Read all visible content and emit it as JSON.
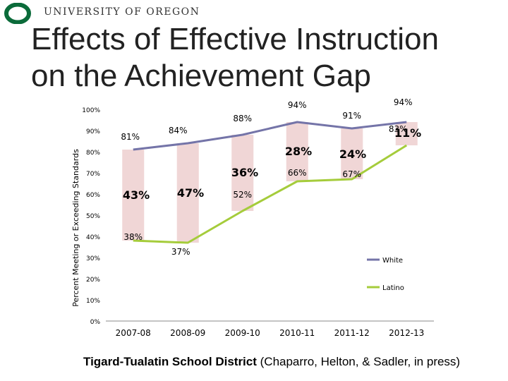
{
  "header": {
    "university": "UNIVERSITY OF OREGON",
    "logo_icon": "o-logo-icon",
    "brand_color": "#0b6b3a"
  },
  "slide": {
    "title_line1": "Effects of Effective Instruction",
    "title_line2": "on the Achievement Gap"
  },
  "footer": {
    "district": "Tigard-Tualatin School District",
    "citation": " (Chaparro, Helton, & Sadler, in press)"
  },
  "chart_data": {
    "type": "line",
    "ylabel": "Percent Meeting or Exceeding Standards",
    "xlabel": "",
    "categories": [
      "2007-08",
      "2008-09",
      "2009-10",
      "2010-11",
      "2011-12",
      "2012-13"
    ],
    "ylim": [
      0,
      100
    ],
    "yticks": [
      "0%",
      "10%",
      "20%",
      "30%",
      "40%",
      "50%",
      "60%",
      "70%",
      "80%",
      "90%",
      "100%"
    ],
    "series": [
      {
        "name": "White",
        "color": "#7474a8",
        "values": [
          81,
          84,
          88,
          94,
          91,
          94
        ],
        "labels": [
          "81%",
          "84%",
          "88%",
          "94%",
          "91%",
          "94%"
        ]
      },
      {
        "name": "Latino",
        "color": "#a5cc3b",
        "values": [
          38,
          37,
          52,
          66,
          67,
          83
        ],
        "labels": [
          "38%",
          "37%",
          "52%",
          "66%",
          "67%",
          "83%"
        ]
      }
    ],
    "gaps": {
      "color": "#f0d6d6",
      "labels": [
        "43%",
        "47%",
        "36%",
        "28%",
        "24%",
        "11%"
      ]
    }
  }
}
